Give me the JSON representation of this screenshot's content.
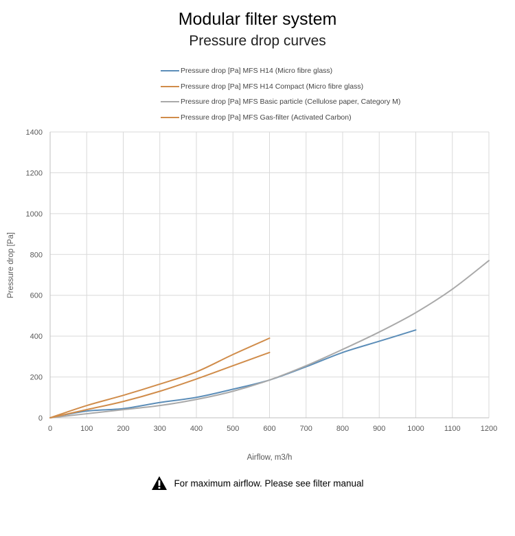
{
  "chart_data": {
    "type": "line",
    "title": "Modular filter system",
    "subtitle": "Pressure drop curves",
    "xlabel": "Airflow, m3/h",
    "ylabel": "Pressure drop [Pa]",
    "xlim": [
      0,
      1200
    ],
    "ylim": [
      0,
      1400
    ],
    "xticks": [
      "0",
      "100",
      "200",
      "300",
      "400",
      "500",
      "600",
      "700",
      "800",
      "900",
      "1000",
      "1100",
      "1200"
    ],
    "yticks": [
      "0",
      "200",
      "400",
      "600",
      "800",
      "1000",
      "1200",
      "1400"
    ],
    "grid": true,
    "legend_position": "top",
    "series": [
      {
        "name": "Pressure drop [Pa] MFS H14 (Micro fibre glass)",
        "color": "#5b8db8",
        "points": [
          [
            0,
            0
          ],
          [
            100,
            33
          ],
          [
            200,
            45
          ],
          [
            300,
            75
          ],
          [
            400,
            100
          ],
          [
            500,
            140
          ],
          [
            600,
            185
          ],
          [
            700,
            250
          ],
          [
            800,
            320
          ],
          [
            900,
            375
          ],
          [
            1000,
            430
          ]
        ]
      },
      {
        "name": "Pressure drop [Pa] MFS H14 Compact (Micro fibre glass)",
        "color": "#d08c4a",
        "points": [
          [
            0,
            0
          ],
          [
            100,
            60
          ],
          [
            200,
            110
          ],
          [
            300,
            165
          ],
          [
            400,
            225
          ],
          [
            500,
            310
          ],
          [
            600,
            390
          ]
        ]
      },
      {
        "name": "Pressure drop [Pa] MFS Basic particle (Cellulose paper, Category M)",
        "color": "#a9a9a9",
        "points": [
          [
            0,
            0
          ],
          [
            100,
            20
          ],
          [
            200,
            40
          ],
          [
            300,
            60
          ],
          [
            400,
            90
          ],
          [
            500,
            130
          ],
          [
            600,
            185
          ],
          [
            700,
            255
          ],
          [
            800,
            335
          ],
          [
            900,
            420
          ],
          [
            1000,
            515
          ],
          [
            1100,
            630
          ],
          [
            1200,
            770
          ]
        ]
      },
      {
        "name": "Pressure drop [Pa] MFS Gas-filter (Activated Carbon)",
        "color": "#d08c4a",
        "points": [
          [
            0,
            0
          ],
          [
            100,
            40
          ],
          [
            200,
            80
          ],
          [
            300,
            130
          ],
          [
            400,
            190
          ],
          [
            500,
            255
          ],
          [
            600,
            320
          ]
        ]
      }
    ]
  },
  "note": {
    "text": "For maximum airflow. Please see filter manual",
    "icon": "warning-icon"
  }
}
